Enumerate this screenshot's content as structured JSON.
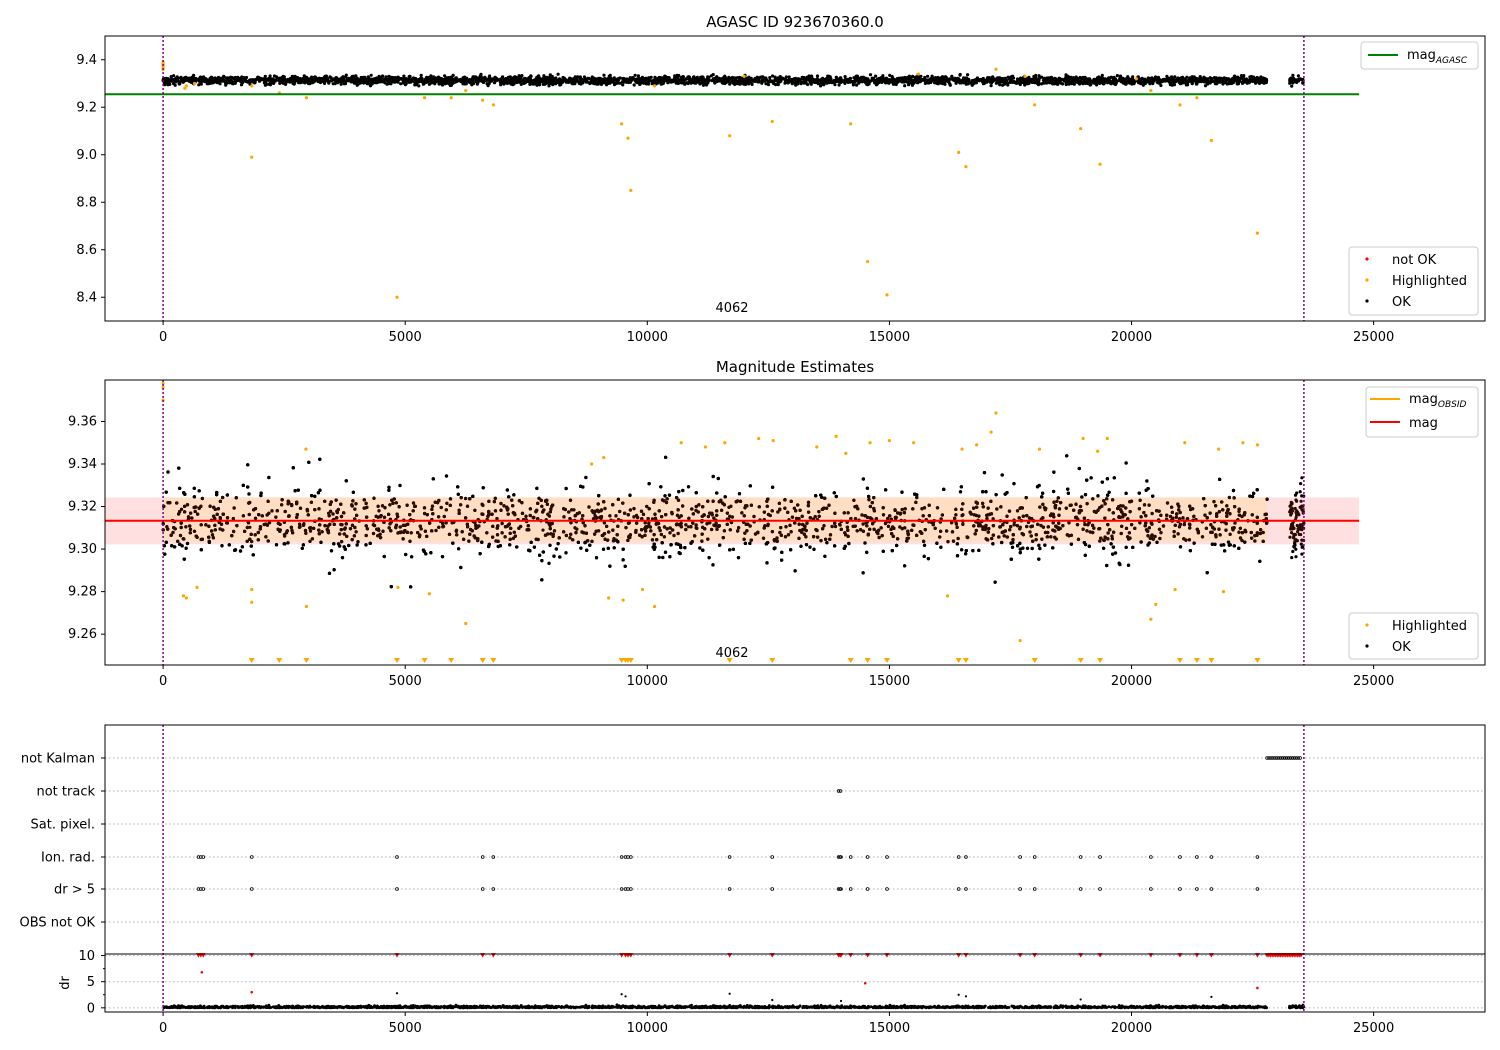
{
  "colors": {
    "ok": "#000000",
    "highlighted": "#ffa500",
    "not_ok": "#ff0000",
    "mag_agasc": "#008000",
    "mag_obsid": "#ffa500",
    "mag": "#ff0000",
    "band_red": "#ffcccc",
    "band_orange": "#ffddbb",
    "dense": "#2a0d00",
    "vline": "#800080"
  },
  "chart_data": [
    {
      "type": "scatter",
      "title": "AGASC ID 923670360.0",
      "xlim": [
        -1200,
        27300
      ],
      "ylim": [
        8.3,
        9.5
      ],
      "xticks": [
        0,
        5000,
        10000,
        15000,
        20000,
        25000
      ],
      "xtick_labels": [
        "0",
        "5000",
        "10000",
        "15000",
        "20000",
        "25000"
      ],
      "yticks": [
        8.4,
        8.6,
        8.8,
        9.0,
        9.2,
        9.4
      ],
      "ytick_labels": [
        "8.4",
        "8.6",
        "8.8",
        "9.0",
        "9.2",
        "9.4"
      ],
      "annotation": "4062",
      "annotation_x": 11770,
      "vlines": [
        0,
        23560
      ],
      "hline": {
        "y": 9.255,
        "x0": -1200,
        "x1": 24700
      },
      "legend_lines": [
        {
          "name": "mag",
          "sub": "AGASC",
          "color": "#008000"
        }
      ],
      "legend_points": [
        {
          "name": "not OK",
          "color": "#ff0000"
        },
        {
          "name": "Highlighted",
          "color": "#ffa500"
        },
        {
          "name": "OK",
          "color": "#000000"
        }
      ],
      "ok_band": {
        "x_ranges": [
          [
            0,
            22800
          ],
          [
            23260,
            23560
          ]
        ],
        "y_center": 9.313,
        "y_spread": 0.025
      },
      "highlighted": [
        [
          0,
          9.39
        ],
        [
          0,
          9.38
        ],
        [
          0,
          9.37
        ],
        [
          0,
          9.36
        ],
        [
          450,
          9.28
        ],
        [
          480,
          9.29
        ],
        [
          650,
          9.3
        ],
        [
          1830,
          9.29
        ],
        [
          1830,
          8.99
        ],
        [
          2400,
          9.26
        ],
        [
          2960,
          9.24
        ],
        [
          4830,
          8.4
        ],
        [
          5400,
          9.24
        ],
        [
          5950,
          9.24
        ],
        [
          6250,
          9.27
        ],
        [
          6600,
          9.23
        ],
        [
          6820,
          9.21
        ],
        [
          9470,
          9.13
        ],
        [
          9600,
          9.07
        ],
        [
          9660,
          8.85
        ],
        [
          10150,
          9.29
        ],
        [
          11700,
          9.08
        ],
        [
          12580,
          9.14
        ],
        [
          14200,
          9.13
        ],
        [
          14550,
          8.55
        ],
        [
          14950,
          8.41
        ],
        [
          16430,
          9.01
        ],
        [
          16580,
          8.95
        ],
        [
          17200,
          9.36
        ],
        [
          18000,
          9.21
        ],
        [
          18950,
          9.11
        ],
        [
          19350,
          8.96
        ],
        [
          20400,
          9.27
        ],
        [
          21000,
          9.21
        ],
        [
          21350,
          9.24
        ],
        [
          21650,
          9.06
        ],
        [
          22600,
          8.67
        ],
        [
          12000,
          9.33
        ],
        [
          15600,
          9.34
        ],
        [
          17800,
          9.33
        ],
        [
          20100,
          9.32
        ]
      ]
    },
    {
      "type": "scatter",
      "title": "Magnitude Estimates",
      "xlim": [
        -1200,
        27300
      ],
      "ylim": [
        9.2455,
        9.3795
      ],
      "xticks": [
        0,
        5000,
        10000,
        15000,
        20000,
        25000
      ],
      "xtick_labels": [
        "0",
        "5000",
        "10000",
        "15000",
        "20000",
        "25000"
      ],
      "yticks": [
        9.26,
        9.28,
        9.3,
        9.32,
        9.34,
        9.36
      ],
      "ytick_labels": [
        "9.26",
        "9.28",
        "9.30",
        "9.32",
        "9.34",
        "9.36"
      ],
      "annotation": "4062",
      "annotation_x": 11770,
      "vlines": [
        0,
        23560
      ],
      "mag_line": {
        "y": 9.3133,
        "x0": -1200,
        "x1": 24700,
        "band": [
          9.3022,
          9.3243
        ]
      },
      "obsid_band": {
        "x0": 0,
        "x1": 22800,
        "y0": 9.3035,
        "y1": 9.3243
      },
      "legend_lines": [
        {
          "name": "mag",
          "sub": "OBSID",
          "color": "#ffa500"
        },
        {
          "name": "mag",
          "sub": "",
          "color": "#ff0000"
        }
      ],
      "legend_points": [
        {
          "name": "Highlighted",
          "color": "#ffa500"
        },
        {
          "name": "OK",
          "color": "#000000"
        }
      ],
      "ok_band": {
        "x_ranges": [
          [
            0,
            22800
          ],
          [
            23260,
            23560
          ]
        ],
        "y_center": 9.313,
        "y_spread": 0.014
      },
      "outlier_triangles_x": [
        1830,
        2400,
        2960,
        4830,
        5400,
        5950,
        6600,
        6820,
        9470,
        9550,
        9600,
        9660,
        11700,
        12580,
        14200,
        14550,
        14950,
        16430,
        16580,
        18000,
        18950,
        19350,
        21000,
        21350,
        21650,
        22600
      ],
      "highlighted": [
        [
          0,
          9.378
        ],
        [
          0,
          9.376
        ],
        [
          0,
          9.37
        ],
        [
          420,
          9.278
        ],
        [
          480,
          9.277
        ],
        [
          700,
          9.282
        ],
        [
          1830,
          9.281
        ],
        [
          1830,
          9.275
        ],
        [
          2960,
          9.273
        ],
        [
          2950,
          9.347
        ],
        [
          4850,
          9.282
        ],
        [
          5500,
          9.279
        ],
        [
          6250,
          9.265
        ],
        [
          8850,
          9.34
        ],
        [
          9100,
          9.343
        ],
        [
          9200,
          9.277
        ],
        [
          9500,
          9.276
        ],
        [
          9900,
          9.281
        ],
        [
          10150,
          9.273
        ],
        [
          10700,
          9.35
        ],
        [
          11200,
          9.348
        ],
        [
          11600,
          9.35
        ],
        [
          12300,
          9.352
        ],
        [
          12600,
          9.351
        ],
        [
          13500,
          9.348
        ],
        [
          13900,
          9.353
        ],
        [
          14100,
          9.345
        ],
        [
          14600,
          9.35
        ],
        [
          15000,
          9.351
        ],
        [
          15500,
          9.35
        ],
        [
          16200,
          9.278
        ],
        [
          16500,
          9.347
        ],
        [
          16800,
          9.349
        ],
        [
          17200,
          9.364
        ],
        [
          17100,
          9.355
        ],
        [
          17700,
          9.257
        ],
        [
          18100,
          9.347
        ],
        [
          19000,
          9.352
        ],
        [
          19300,
          9.346
        ],
        [
          19500,
          9.352
        ],
        [
          20400,
          9.267
        ],
        [
          20500,
          9.274
        ],
        [
          20900,
          9.281
        ],
        [
          21100,
          9.35
        ],
        [
          21800,
          9.347
        ],
        [
          21900,
          9.28
        ],
        [
          22300,
          9.35
        ],
        [
          22600,
          9.349
        ]
      ]
    },
    {
      "type": "scatter",
      "title": "",
      "xlim": [
        -1200,
        27300
      ],
      "xticks": [
        0,
        5000,
        10000,
        15000,
        20000,
        25000
      ],
      "xtick_labels": [
        "0",
        "5000",
        "10000",
        "15000",
        "20000",
        "25000"
      ],
      "categories": [
        "not Kalman",
        "not track",
        "Sat. pixel.",
        "Ion. rad.",
        "dr > 5",
        "OBS not OK"
      ],
      "vlines": [
        0,
        23560
      ],
      "flags": {
        "not Kalman": [
          [
            22800,
            23500
          ]
        ],
        "not track": [
          [
            13950,
            14000
          ]
        ],
        "Sat. pixel.": [],
        "Ion. rad.": [
          730,
          780,
          830,
          1830,
          4830,
          6600,
          6820,
          9470,
          9550,
          9600,
          9660,
          11700,
          12580,
          13950,
          13980,
          14000,
          14200,
          14550,
          14950,
          16430,
          16580,
          17700,
          18000,
          18950,
          19350,
          20400,
          21000,
          21350,
          21650,
          22600
        ],
        "dr > 5": [
          730,
          780,
          830,
          1830,
          4830,
          6600,
          6820,
          9470,
          9550,
          9600,
          9660,
          11700,
          12580,
          13950,
          13980,
          14000,
          14200,
          14550,
          14950,
          16430,
          16580,
          17700,
          18000,
          18950,
          19350,
          20400,
          21000,
          21350,
          21650,
          22600
        ],
        "OBS not OK": []
      },
      "dr": {
        "ylabel": "dr",
        "ylim": [
          -0.8,
          10.3
        ],
        "yticks": [
          0,
          5,
          10
        ],
        "ytick_labels": [
          "0",
          "5",
          "10"
        ],
        "clipped_x": [
          730,
          780,
          830,
          1830,
          4830,
          6600,
          6820,
          9470,
          9550,
          9600,
          9660,
          11700,
          12580,
          13950,
          13980,
          14000,
          14200,
          14550,
          14950,
          16430,
          16580,
          17700,
          18000,
          18950,
          19350,
          20400,
          21000,
          21350,
          21650,
          22600
        ],
        "clipped_range": [
          22800,
          23500
        ],
        "red_points": [
          [
            800,
            6.8
          ],
          [
            1830,
            3.0
          ],
          [
            14500,
            4.7
          ],
          [
            22600,
            3.8
          ]
        ],
        "black_points": [
          [
            4830,
            2.8
          ],
          [
            9470,
            2.6
          ],
          [
            9550,
            2.2
          ],
          [
            11700,
            2.7
          ],
          [
            12580,
            1.5
          ],
          [
            16430,
            2.5
          ],
          [
            16580,
            2.2
          ],
          [
            18950,
            1.6
          ],
          [
            21650,
            2.1
          ],
          [
            14000,
            1.3
          ]
        ]
      }
    }
  ]
}
